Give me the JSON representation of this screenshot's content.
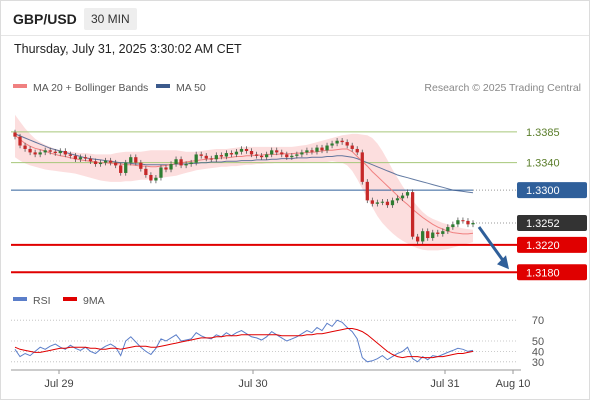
{
  "header": {
    "pair": "GBP/USD",
    "timeframe": "30 MIN",
    "datetime": "Thursday, July 31, 2025 3:30:02 AM CET"
  },
  "colors": {
    "price_up": "#2e7d32",
    "price_down": "#c62828",
    "ma20": "#f08080",
    "bollinger_fill": "#fcdada",
    "ma50": "#3c5a8c",
    "support": "#e00000",
    "resistance_minor": "#a6c77a",
    "pivot": "#2f5f9a",
    "current_price_tag": "#333333",
    "arrow": "#2f5f9a",
    "rsi": "#5b7ec9",
    "rsi_9ma": "#e00000"
  },
  "chart_data": [
    {
      "type": "candlestick",
      "title": "",
      "legend": [
        {
          "name": "MA 20 + Bollinger Bands",
          "color": "#f08080"
        },
        {
          "name": "MA 50",
          "color": "#3c5a8c"
        }
      ],
      "credit": "Research © 2025 Trading Central",
      "xlabels": [
        "Jul 29",
        "Jul 30",
        "Jul 31",
        "Aug 10"
      ],
      "ylim": [
        1.316,
        1.343
      ],
      "levels": [
        {
          "value": 1.3385,
          "label": "1.3385",
          "style": "resistance_minor"
        },
        {
          "value": 1.334,
          "label": "1.3340",
          "style": "resistance_minor"
        },
        {
          "value": 1.33,
          "label": "1.3300",
          "style": "pivot"
        },
        {
          "value": 1.3252,
          "label": "1.3252",
          "style": "current"
        },
        {
          "value": 1.322,
          "label": "1.3220",
          "style": "support"
        },
        {
          "value": 1.318,
          "label": "1.3180",
          "style": "support"
        }
      ],
      "candle_closes": [
        1.3378,
        1.3365,
        1.336,
        1.3355,
        1.3352,
        1.3355,
        1.3358,
        1.3356,
        1.3354,
        1.3357,
        1.3352,
        1.335,
        1.3345,
        1.3348,
        1.3346,
        1.3342,
        1.3338,
        1.334,
        1.3343,
        1.334,
        1.3336,
        1.3325,
        1.334,
        1.3348,
        1.334,
        1.3331,
        1.3322,
        1.3314,
        1.3318,
        1.3333,
        1.333,
        1.3338,
        1.3345,
        1.3336,
        1.3338,
        1.334,
        1.3352,
        1.335,
        1.3346,
        1.3345,
        1.3351,
        1.3349,
        1.3354,
        1.3352,
        1.3356,
        1.336,
        1.3357,
        1.3352,
        1.335,
        1.3348,
        1.3352,
        1.3358,
        1.3355,
        1.3352,
        1.3348,
        1.335,
        1.3352,
        1.3355,
        1.3358,
        1.3356,
        1.3362,
        1.3358,
        1.3365,
        1.3368,
        1.3372,
        1.337,
        1.3365,
        1.336,
        1.3355,
        1.3312,
        1.3285,
        1.328,
        1.3282,
        1.3283,
        1.3278,
        1.3285,
        1.3288,
        1.3292,
        1.3297,
        1.3232,
        1.3225,
        1.324,
        1.323,
        1.3238,
        1.3236,
        1.324,
        1.3246,
        1.325,
        1.3256,
        1.3255,
        1.325,
        1.3252
      ],
      "ma20": [
        1.338,
        1.3374,
        1.3368,
        1.3364,
        1.3361,
        1.3359,
        1.3357,
        1.3354,
        1.3352,
        1.335,
        1.3349,
        1.3347,
        1.3346,
        1.3344,
        1.3343,
        1.3342,
        1.3341,
        1.334,
        1.334,
        1.3339,
        1.3339,
        1.3338,
        1.3337,
        1.3337,
        1.3336,
        1.3335,
        1.3335,
        1.3334,
        1.3334,
        1.3335,
        1.3336,
        1.3337,
        1.3339,
        1.334,
        1.3341,
        1.3342,
        1.3343,
        1.3344,
        1.3345,
        1.3346,
        1.3346,
        1.3347,
        1.3347,
        1.3348,
        1.3349,
        1.3349,
        1.335,
        1.335,
        1.3351,
        1.3351,
        1.3352,
        1.3352,
        1.3352,
        1.3353,
        1.3353,
        1.3353,
        1.3354,
        1.3354,
        1.3355,
        1.3355,
        1.3356,
        1.3357,
        1.3358,
        1.3358,
        1.3359,
        1.336,
        1.336,
        1.3356,
        1.3349,
        1.3342,
        1.3335,
        1.3327,
        1.332,
        1.3313,
        1.3306,
        1.3299,
        1.3292,
        1.3285,
        1.3279,
        1.3272,
        1.3266,
        1.326,
        1.3255,
        1.325,
        1.3246,
        1.3243,
        1.324,
        1.3238,
        1.3237,
        1.3236,
        1.3236,
        1.3237
      ],
      "bb_upper": [
        1.341,
        1.34,
        1.339,
        1.3382,
        1.3375,
        1.337,
        1.3366,
        1.3363,
        1.336,
        1.3358,
        1.3357,
        1.3356,
        1.3355,
        1.3354,
        1.3354,
        1.3353,
        1.3352,
        1.3352,
        1.3352,
        1.3352,
        1.3354,
        1.3355,
        1.3356,
        1.3356,
        1.3356,
        1.3356,
        1.3357,
        1.3358,
        1.3358,
        1.3358,
        1.3358,
        1.3358,
        1.3358,
        1.3357,
        1.3356,
        1.3356,
        1.3356,
        1.3357,
        1.3358,
        1.3359,
        1.336,
        1.336,
        1.336,
        1.3361,
        1.3362,
        1.3363,
        1.3363,
        1.3363,
        1.3363,
        1.3363,
        1.3363,
        1.3363,
        1.3363,
        1.3363,
        1.3363,
        1.3363,
        1.3364,
        1.3365,
        1.3366,
        1.3368,
        1.337,
        1.3372,
        1.3374,
        1.3376,
        1.3378,
        1.338,
        1.3381,
        1.3382,
        1.3382,
        1.3381,
        1.338,
        1.3376,
        1.3368,
        1.3357,
        1.3344,
        1.333,
        1.3318,
        1.3306,
        1.3295,
        1.3285,
        1.3276,
        1.3268,
        1.3262,
        1.3258,
        1.3255,
        1.3252,
        1.325,
        1.3248,
        1.3246,
        1.3244,
        1.3243,
        1.3242
      ],
      "bb_lower": [
        1.3348,
        1.3343,
        1.3339,
        1.3336,
        1.3334,
        1.3332,
        1.333,
        1.3329,
        1.3328,
        1.3327,
        1.3326,
        1.3325,
        1.3324,
        1.3322,
        1.332,
        1.3318,
        1.3316,
        1.3314,
        1.3313,
        1.3312,
        1.3312,
        1.3312,
        1.3313,
        1.3313,
        1.3314,
        1.3315,
        1.3315,
        1.3316,
        1.3317,
        1.3318,
        1.3319,
        1.332,
        1.3321,
        1.3323,
        1.3325,
        1.3327,
        1.3329,
        1.333,
        1.3331,
        1.3332,
        1.3333,
        1.3334,
        1.3334,
        1.3335,
        1.3335,
        1.3336,
        1.3337,
        1.3337,
        1.3338,
        1.3338,
        1.3339,
        1.3339,
        1.334,
        1.334,
        1.334,
        1.334,
        1.334,
        1.334,
        1.3341,
        1.3341,
        1.3341,
        1.3341,
        1.3341,
        1.3342,
        1.3341,
        1.334,
        1.3336,
        1.3328,
        1.3316,
        1.3302,
        1.3288,
        1.3275,
        1.3262,
        1.3252,
        1.3244,
        1.3237,
        1.3231,
        1.3226,
        1.3222,
        1.3218,
        1.3215,
        1.3213,
        1.3212,
        1.3212,
        1.3212,
        1.3213,
        1.3214,
        1.3216,
        1.3218,
        1.322,
        1.3222,
        1.3224
      ],
      "ma50": [
        1.3382,
        1.3379,
        1.3376,
        1.3373,
        1.337,
        1.3367,
        1.3364,
        1.3361,
        1.3359,
        1.3357,
        1.3355,
        1.3353,
        1.3351,
        1.3349,
        1.3347,
        1.3346,
        1.3345,
        1.3344,
        1.3343,
        1.3342,
        1.3341,
        1.334,
        1.334,
        1.3339,
        1.3338,
        1.3338,
        1.3337,
        1.3337,
        1.3337,
        1.3337,
        1.3337,
        1.3337,
        1.3338,
        1.3338,
        1.3338,
        1.3339,
        1.3339,
        1.334,
        1.334,
        1.3341,
        1.3341,
        1.3341,
        1.3342,
        1.3342,
        1.3342,
        1.3343,
        1.3343,
        1.3343,
        1.3344,
        1.3344,
        1.3344,
        1.3345,
        1.3345,
        1.3346,
        1.3346,
        1.3346,
        1.3347,
        1.3347,
        1.3347,
        1.3348,
        1.3348,
        1.3348,
        1.3349,
        1.3349,
        1.335,
        1.335,
        1.3349,
        1.3348,
        1.3346,
        1.3343,
        1.334,
        1.3337,
        1.3334,
        1.3331,
        1.3328,
        1.3325,
        1.3322,
        1.332,
        1.3318,
        1.3316,
        1.3314,
        1.3312,
        1.331,
        1.3308,
        1.3306,
        1.3304,
        1.3302,
        1.33,
        1.3299,
        1.3298,
        1.3297,
        1.3296
      ]
    },
    {
      "type": "line",
      "title": "",
      "legend": [
        {
          "name": "RSI",
          "color": "#5b7ec9"
        },
        {
          "name": "9MA",
          "color": "#e00000"
        }
      ],
      "ylim": [
        25,
        75
      ],
      "yticks": [
        70,
        50,
        40,
        30
      ],
      "series": [
        {
          "name": "RSI",
          "values": [
            42,
            35,
            38,
            36,
            40,
            44,
            42,
            45,
            47,
            44,
            42,
            46,
            43,
            41,
            44,
            40,
            38,
            42,
            45,
            47,
            44,
            36,
            50,
            54,
            49,
            44,
            40,
            37,
            43,
            52,
            50,
            53,
            56,
            50,
            51,
            52,
            58,
            55,
            53,
            52,
            56,
            54,
            58,
            55,
            58,
            60,
            57,
            54,
            53,
            51,
            54,
            59,
            56,
            53,
            50,
            52,
            54,
            57,
            60,
            58,
            63,
            60,
            67,
            64,
            70,
            68,
            63,
            59,
            52,
            34,
            30,
            31,
            33,
            36,
            32,
            35,
            38,
            40,
            44,
            33,
            30,
            35,
            32,
            36,
            35,
            37,
            39,
            41,
            43,
            42,
            40,
            41
          ]
        },
        {
          "name": "9MA",
          "values": [
            44,
            42,
            41,
            40,
            39,
            39,
            40,
            41,
            42,
            43,
            43,
            44,
            44,
            44,
            44,
            43,
            43,
            42,
            42,
            43,
            43,
            42,
            43,
            44,
            45,
            45,
            45,
            44,
            44,
            45,
            46,
            47,
            48,
            49,
            50,
            51,
            52,
            53,
            53,
            53,
            54,
            54,
            55,
            55,
            55,
            56,
            56,
            56,
            56,
            56,
            56,
            56,
            56,
            55,
            55,
            55,
            55,
            55,
            56,
            56,
            57,
            57,
            58,
            59,
            60,
            61,
            62,
            62,
            61,
            59,
            56,
            52,
            48,
            44,
            40,
            37,
            35,
            34,
            35,
            35,
            35,
            34,
            34,
            34,
            35,
            35,
            36,
            37,
            38,
            38,
            39,
            40
          ]
        }
      ]
    }
  ]
}
